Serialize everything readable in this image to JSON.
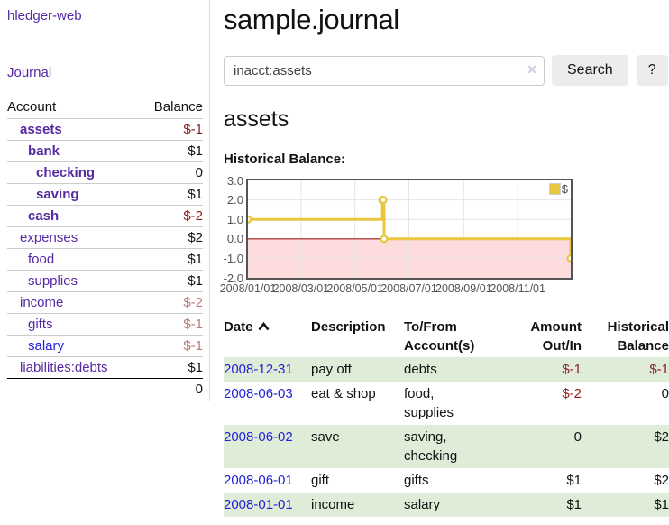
{
  "app": {
    "brand": "hledger-web"
  },
  "sidebar": {
    "journal_label": "Journal",
    "accounts_table": {
      "col_account": "Account",
      "col_balance": "Balance",
      "rows": [
        {
          "label": "assets",
          "level": 0,
          "bold": true,
          "balance": "$-1",
          "neg": true,
          "faded": false,
          "blue": false
        },
        {
          "label": "bank",
          "level": 1,
          "bold": true,
          "balance": "$1",
          "neg": false,
          "faded": false,
          "blue": false
        },
        {
          "label": "checking",
          "level": 2,
          "bold": true,
          "balance": "0",
          "neg": false,
          "faded": false,
          "blue": false
        },
        {
          "label": "saving",
          "level": 2,
          "bold": true,
          "balance": "$1",
          "neg": false,
          "faded": false,
          "blue": false
        },
        {
          "label": "cash",
          "level": 1,
          "bold": true,
          "balance": "$-2",
          "neg": true,
          "faded": false,
          "blue": false
        },
        {
          "label": "expenses",
          "level": 0,
          "bold": false,
          "balance": "$2",
          "neg": false,
          "faded": false,
          "blue": false
        },
        {
          "label": "food",
          "level": 1,
          "bold": false,
          "balance": "$1",
          "neg": false,
          "faded": false,
          "blue": false
        },
        {
          "label": "supplies",
          "level": 1,
          "bold": false,
          "balance": "$1",
          "neg": false,
          "faded": false,
          "blue": false
        },
        {
          "label": "income",
          "level": 0,
          "bold": false,
          "balance": "$-2",
          "neg": false,
          "faded": true,
          "blue": false
        },
        {
          "label": "gifts",
          "level": 1,
          "bold": false,
          "balance": "$-1",
          "neg": false,
          "faded": true,
          "blue": false
        },
        {
          "label": "salary",
          "level": 1,
          "bold": false,
          "balance": "$-1",
          "neg": false,
          "faded": true,
          "blue": true
        },
        {
          "label": "liabilities:debts",
          "level": 0,
          "bold": false,
          "balance": "$1",
          "neg": false,
          "faded": false,
          "blue": false
        }
      ],
      "total": "0"
    }
  },
  "header": {
    "title": "sample.journal"
  },
  "search": {
    "value": "inacct:assets",
    "clear_icon": "✕",
    "search_label": "Search",
    "help_label": "?"
  },
  "register": {
    "heading": "assets",
    "chart_label": "Historical Balance:",
    "table": {
      "headers": {
        "date": "Date",
        "description": "Description",
        "accounts": "To/From Account(s)",
        "amount": "Amount Out/In",
        "balance": "Historical Balance"
      },
      "rows": [
        {
          "date": "2008-12-31",
          "description": "pay off",
          "accounts": "debts",
          "amount": "$-1",
          "amount_negative": true,
          "balance": "$-1",
          "balance_negative": true
        },
        {
          "date": "2008-06-03",
          "description": "eat & shop",
          "accounts": "food, supplies",
          "amount": "$-2",
          "amount_negative": true,
          "balance": "0",
          "balance_negative": false
        },
        {
          "date": "2008-06-02",
          "description": "save",
          "accounts": "saving, checking",
          "amount": "0",
          "amount_negative": false,
          "balance": "$2",
          "balance_negative": false
        },
        {
          "date": "2008-06-01",
          "description": "gift",
          "accounts": "gifts",
          "amount": "$1",
          "amount_negative": false,
          "balance": "$2",
          "balance_negative": false
        },
        {
          "date": "2008-01-01",
          "description": "income",
          "accounts": "salary",
          "amount": "$1",
          "amount_negative": false,
          "balance": "$1",
          "balance_negative": false
        }
      ]
    }
  },
  "chart_data": {
    "type": "line",
    "step": true,
    "title": "Historical Balance",
    "legend": "$",
    "legend_position": "top-right",
    "grid": true,
    "x_range": [
      "2008-01-01",
      "2008-12-31"
    ],
    "ylim": [
      -2,
      3
    ],
    "y_ticks": [
      "3.0",
      "2.0",
      "1.0",
      "0.0",
      "-1.0",
      "-2.0"
    ],
    "x_ticks": [
      "2008/01/01",
      "2008/03/01",
      "2008/05/01",
      "2008/07/01",
      "2008/09/01",
      "2008/11/01"
    ],
    "series": [
      {
        "name": "$",
        "color": "#e9c63f",
        "points": [
          [
            "2008-01-01",
            1
          ],
          [
            "2008-06-01",
            2
          ],
          [
            "2008-06-02",
            2
          ],
          [
            "2008-06-03",
            0
          ],
          [
            "2008-12-31",
            -1
          ]
        ]
      }
    ],
    "negative_region_fill": "#fcdcdc",
    "zero_line_color": "#9e1818",
    "gridline_color": "#e4e4e4",
    "border_color": "#545454"
  },
  "colors": {
    "link_purple": "#5629a3",
    "link_blue": "#2222d6",
    "negative": "#8d1f1f",
    "negative_faded": "#b87a76",
    "row_green": "#dfecd8",
    "chart_line": "#e9c63f"
  }
}
